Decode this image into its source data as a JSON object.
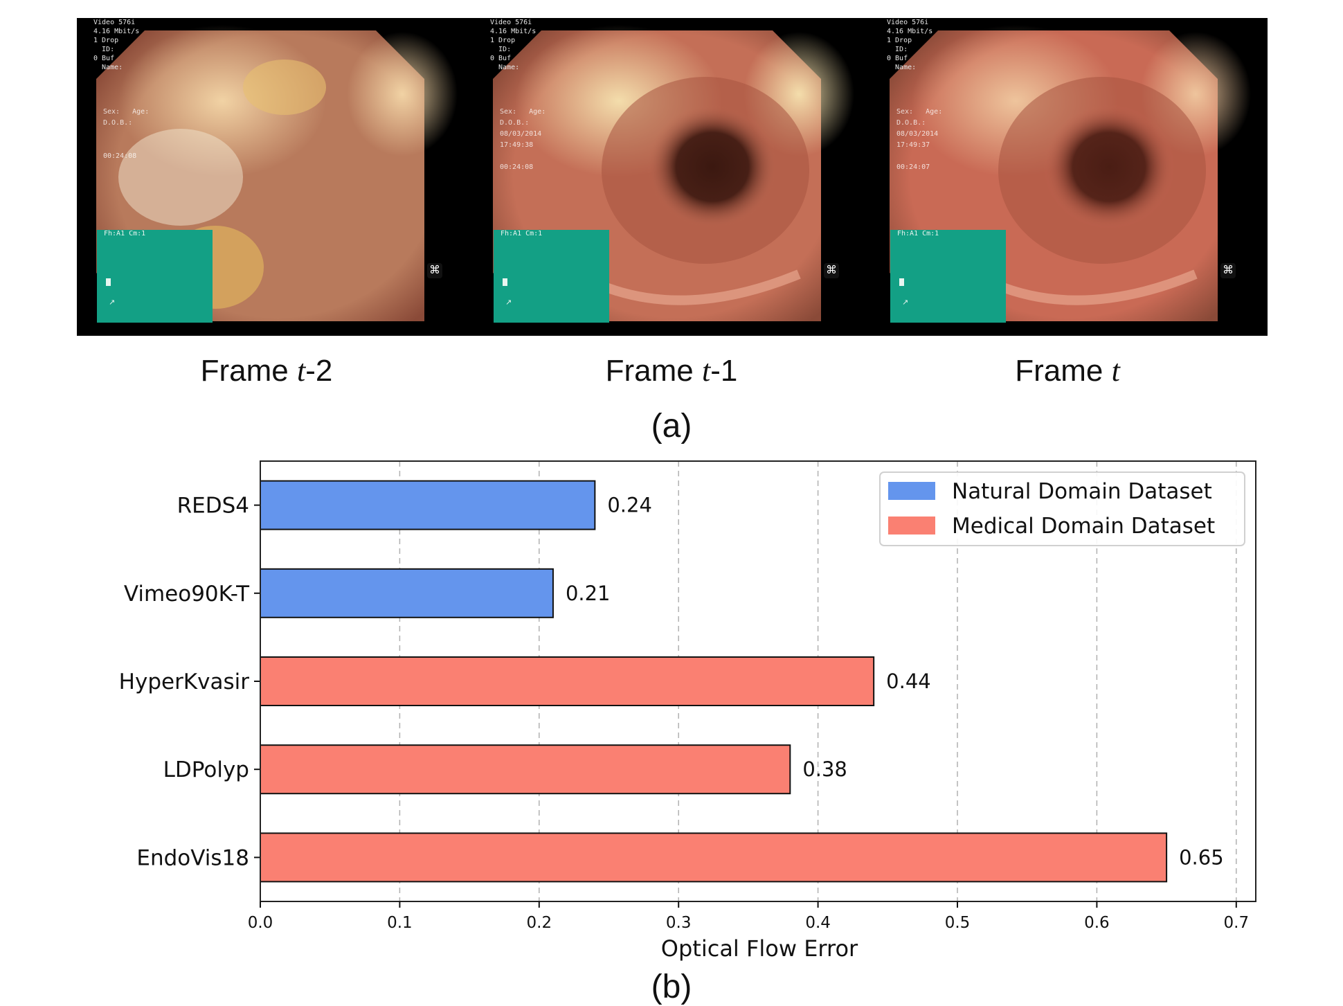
{
  "panel_a": {
    "label": "(a)",
    "frames": [
      {
        "caption_prefix": "Frame ",
        "caption_var": "t",
        "caption_suffix": "-2",
        "osd_lines": [
          "Video 576i",
          "4.16 Mbit/s",
          "1 Drop",
          "  ID:",
          "0 Buf",
          "  Name:"
        ],
        "osd_mid": "Sex:   Age:\nD.O.B.:\n\n\n00:24:08",
        "teal_header": "Fh:A1 Cm:1"
      },
      {
        "caption_prefix": "Frame ",
        "caption_var": "t",
        "caption_suffix": "-1",
        "osd_lines": [
          "Video 576i",
          "4.16 Mbit/s",
          "1 Drop",
          "  ID:",
          "0 Buf",
          "  Name:"
        ],
        "osd_mid": "Sex:   Age:\nD.O.B.:\n08/03/2014\n17:49:38\n\n00:24:08",
        "teal_header": "Fh:A1 Cm:1"
      },
      {
        "caption_prefix": "Frame ",
        "caption_var": "t",
        "caption_suffix": "",
        "osd_lines": [
          "Video 576i",
          "4.16 Mbit/s",
          "1 Drop",
          "  ID:",
          "0 Buf",
          "  Name:"
        ],
        "osd_mid": "Sex:   Age:\nD.O.B.:\n08/03/2014\n17:49:37\n\n00:24:07",
        "teal_header": "Fh:A1 Cm:1"
      }
    ]
  },
  "panel_b": {
    "label": "(b)"
  },
  "chart_data": {
    "type": "bar",
    "orientation": "horizontal",
    "categories": [
      "REDS4",
      "Vimeo90K-T",
      "HyperKvasir",
      "LDPolyp",
      "EndoVis18"
    ],
    "values": [
      0.24,
      0.21,
      0.44,
      0.38,
      0.65
    ],
    "data_labels": [
      "0.24",
      "0.21",
      "0.44",
      "0.38",
      "0.65"
    ],
    "groups": [
      "Natural Domain Dataset",
      "Natural Domain Dataset",
      "Medical Domain Dataset",
      "Medical Domain Dataset",
      "Medical Domain Dataset"
    ],
    "legend": [
      {
        "name": "Natural Domain Dataset",
        "color": "#6495ed"
      },
      {
        "name": "Medical Domain Dataset",
        "color": "#fa8072"
      }
    ],
    "legend_position": "top-right",
    "xlabel": "Optical Flow Error",
    "ylabel": "",
    "xlim": [
      0,
      0.714
    ],
    "xticks": [
      "0.0",
      "0.1",
      "0.2",
      "0.3",
      "0.4",
      "0.5",
      "0.6",
      "0.7"
    ],
    "grid": "vertical dashed"
  }
}
